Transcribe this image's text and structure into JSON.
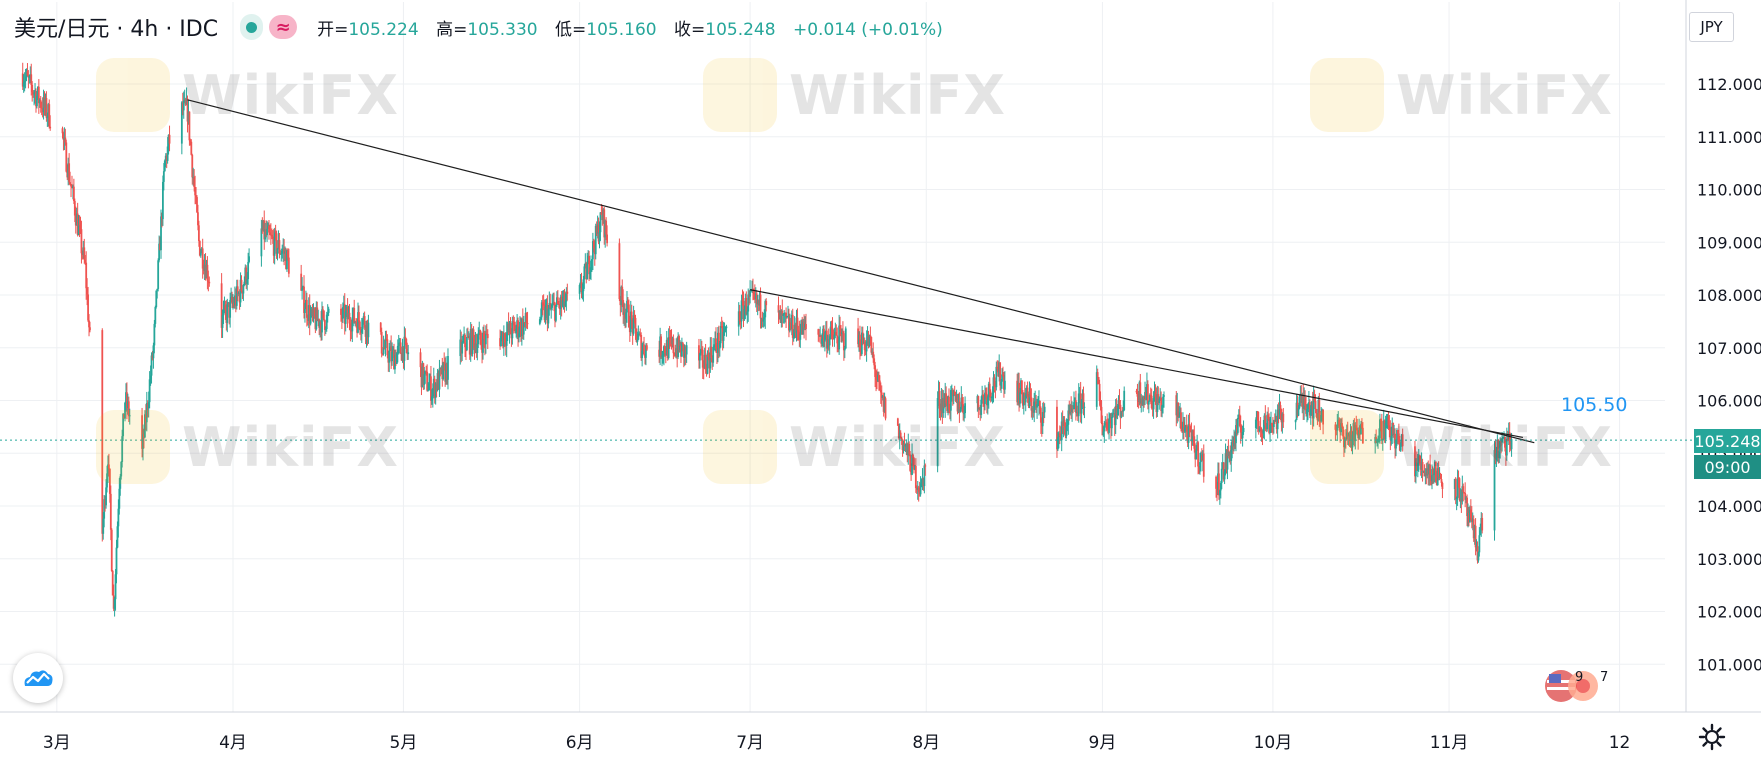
{
  "header": {
    "symbol": "美元/日元 · 4h · IDC",
    "ohlc": [
      {
        "label": "开=",
        "value": "105.224"
      },
      {
        "label": "高=",
        "value": "105.330"
      },
      {
        "label": "低=",
        "value": "105.160"
      },
      {
        "label": "收=",
        "value": "105.248"
      },
      {
        "label": "",
        "value": "+0.014 (+0.01%)"
      }
    ],
    "wave_icon": "≈"
  },
  "currency": "JPY",
  "last_price_tag": "105.248",
  "countdown_tag": "09:00",
  "trendline_label": "105.50",
  "events": {
    "count_a": "9",
    "count_b": "7"
  },
  "watermark_text": "WikiFX",
  "colors": {
    "up": "#26a69a",
    "down": "#ef5350",
    "accent": "#2196f3",
    "trend": "#1e1e1e"
  },
  "chart_data": {
    "type": "candlestick",
    "title": "美元/日元 · 4h · IDC",
    "xlabel": "",
    "ylabel": "",
    "x_ticks": [
      "3月",
      "4月",
      "5月",
      "6月",
      "7月",
      "8月",
      "9月",
      "10月",
      "11月",
      "12"
    ],
    "y_ticks": [
      "101.000",
      "102.000",
      "103.000",
      "104.000",
      "105.000",
      "106.000",
      "107.000",
      "108.000",
      "109.000",
      "110.000",
      "111.000",
      "112.000"
    ],
    "ylim": [
      100.8,
      113.3
    ],
    "last_price": 105.248,
    "grid": true,
    "price_path": [
      [
        "2020-02-24",
        112.2
      ],
      [
        "2020-03-02",
        111.0
      ],
      [
        "2020-03-06",
        108.5
      ],
      [
        "2020-03-09",
        103.5
      ],
      [
        "2020-03-10",
        105.0
      ],
      [
        "2020-03-11",
        102.0
      ],
      [
        "2020-03-12",
        104.5
      ],
      [
        "2020-03-13",
        106.0
      ],
      [
        "2020-03-16",
        105.0
      ],
      [
        "2020-03-18",
        107.0
      ],
      [
        "2020-03-20",
        110.5
      ],
      [
        "2020-03-22",
        111.5
      ],
      [
        "2020-03-24",
        111.5
      ],
      [
        "2020-03-26",
        109.0
      ],
      [
        "2020-03-30",
        107.5
      ],
      [
        "2020-04-02",
        108.0
      ],
      [
        "2020-04-06",
        109.2
      ],
      [
        "2020-04-10",
        108.8
      ],
      [
        "2020-04-15",
        107.5
      ],
      [
        "2020-04-20",
        107.6
      ],
      [
        "2020-04-24",
        107.5
      ],
      [
        "2020-04-29",
        106.8
      ],
      [
        "2020-05-01",
        107.0
      ],
      [
        "2020-05-06",
        106.2
      ],
      [
        "2020-05-12",
        107.1
      ],
      [
        "2020-05-18",
        107.2
      ],
      [
        "2020-05-25",
        107.6
      ],
      [
        "2020-06-01",
        108.0
      ],
      [
        "2020-06-05",
        109.5
      ],
      [
        "2020-06-08",
        108.0
      ],
      [
        "2020-06-12",
        107.0
      ],
      [
        "2020-06-18",
        107.0
      ],
      [
        "2020-06-23",
        106.7
      ],
      [
        "2020-06-26",
        107.2
      ],
      [
        "2020-07-01",
        107.9
      ],
      [
        "2020-07-08",
        107.4
      ],
      [
        "2020-07-15",
        107.2
      ],
      [
        "2020-07-22",
        107.1
      ],
      [
        "2020-07-24",
        106.0
      ],
      [
        "2020-07-28",
        105.2
      ],
      [
        "2020-07-31",
        104.3
      ],
      [
        "2020-08-03",
        106.0
      ],
      [
        "2020-08-10",
        105.9
      ],
      [
        "2020-08-14",
        106.5
      ],
      [
        "2020-08-21",
        105.8
      ],
      [
        "2020-08-24",
        105.3
      ],
      [
        "2020-08-31",
        106.4
      ],
      [
        "2020-09-01",
        105.5
      ],
      [
        "2020-09-07",
        106.2
      ],
      [
        "2020-09-14",
        105.8
      ],
      [
        "2020-09-21",
        104.3
      ],
      [
        "2020-09-25",
        105.5
      ],
      [
        "2020-10-01",
        105.6
      ],
      [
        "2020-10-07",
        106.0
      ],
      [
        "2020-10-14",
        105.3
      ],
      [
        "2020-10-21",
        105.5
      ],
      [
        "2020-10-26",
        104.8
      ],
      [
        "2020-10-30",
        104.6
      ],
      [
        "2020-11-03",
        104.3
      ],
      [
        "2020-11-06",
        103.2
      ],
      [
        "2020-11-09",
        105.0
      ],
      [
        "2020-11-12",
        105.248
      ]
    ],
    "trendlines": [
      {
        "from": [
          "2020-03-24",
          111.7
        ],
        "to": [
          "2020-11-16",
          105.2
        ]
      },
      {
        "from": [
          "2020-07-01",
          108.1
        ],
        "to": [
          "2020-11-14",
          105.3
        ]
      }
    ]
  }
}
